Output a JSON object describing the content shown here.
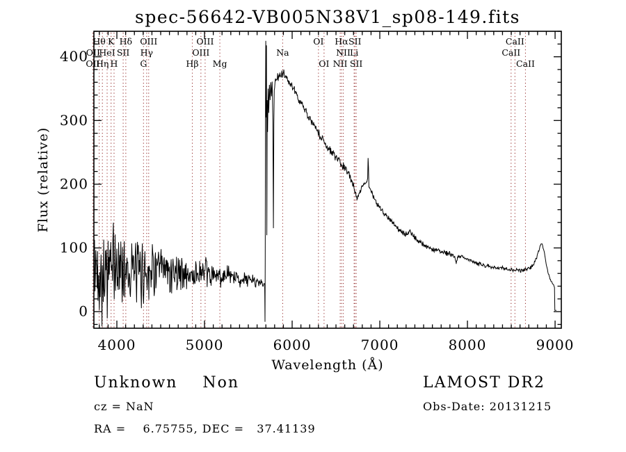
{
  "title": "spec-56642-VB005N38V1_sp08-149.fits",
  "annotations": {
    "class_label": "Unknown    Non",
    "cz": "cz = NaN",
    "radec": "RA =    6.75755, DEC =   37.41139",
    "survey": "LAMOST DR2",
    "obs_date": "Obs-Date: 20131215"
  },
  "chart_data": {
    "type": "line",
    "title": "spec-56642-VB005N38V1_sp08-149.fits",
    "xlabel": "Wavelength (Å)",
    "ylabel": "Flux (relative)",
    "xlim": [
      3738,
      9071
    ],
    "ylim": [
      -26,
      440
    ],
    "xticks": [
      4000,
      5000,
      6000,
      7000,
      8000,
      9000
    ],
    "x_minor_step": 100,
    "yticks": [
      0,
      100,
      200,
      300,
      400
    ],
    "y_minor_step": 20,
    "grid": false,
    "legend": "none",
    "trace_color": "#000000",
    "line_marker_color": "#993333",
    "spectral_lines": [
      {
        "label": "OII",
        "wavelength": 3726,
        "row": 3
      },
      {
        "label": "OII",
        "wavelength": 3729,
        "row": 2
      },
      {
        "label": "Hθ",
        "wavelength": 3798,
        "row": 1
      },
      {
        "label": "Hη",
        "wavelength": 3835,
        "row": 3
      },
      {
        "label": "HeI",
        "wavelength": 3889,
        "row": 2
      },
      {
        "label": "K",
        "wavelength": 3934,
        "row": 1
      },
      {
        "label": "H",
        "wavelength": 3968,
        "row": 3
      },
      {
        "label": "SII",
        "wavelength": 4072,
        "row": 2
      },
      {
        "label": "Hδ",
        "wavelength": 4102,
        "row": 1
      },
      {
        "label": "G",
        "wavelength": 4304,
        "row": 3
      },
      {
        "label": "Hγ",
        "wavelength": 4340,
        "row": 2
      },
      {
        "label": "OIII",
        "wavelength": 4363,
        "row": 1
      },
      {
        "label": "Hβ",
        "wavelength": 4861,
        "row": 3
      },
      {
        "label": "OIII",
        "wavelength": 4959,
        "row": 2
      },
      {
        "label": "OIII",
        "wavelength": 5007,
        "row": 1
      },
      {
        "label": "Mg",
        "wavelength": 5175,
        "row": 3
      },
      {
        "label": "Na",
        "wavelength": 5892,
        "row": 2
      },
      {
        "label": "OI",
        "wavelength": 6300,
        "row": 1
      },
      {
        "label": "OI",
        "wavelength": 6364,
        "row": 3
      },
      {
        "label": "NII",
        "wavelength": 6548,
        "row": 3
      },
      {
        "label": "Hα",
        "wavelength": 6563,
        "row": 1
      },
      {
        "label": "NII",
        "wavelength": 6583,
        "row": 2
      },
      {
        "label": "Li",
        "wavelength": 6707,
        "row": 2
      },
      {
        "label": "SII",
        "wavelength": 6716,
        "row": 1
      },
      {
        "label": "SII",
        "wavelength": 6731,
        "row": 3
      },
      {
        "label": "CaII",
        "wavelength": 8542,
        "row": 1
      },
      {
        "label": "CaII",
        "wavelength": 8498,
        "row": 2
      },
      {
        "label": "CaII",
        "wavelength": 8662,
        "row": 3
      }
    ],
    "sample_step": 5,
    "noise_seed": 42,
    "blue_keypoints": [
      [
        3740,
        60,
        80
      ],
      [
        3790,
        68,
        76
      ],
      [
        3840,
        58,
        72
      ],
      [
        3890,
        66,
        70
      ],
      [
        3940,
        70,
        66
      ],
      [
        3990,
        66,
        62
      ],
      [
        4040,
        72,
        60
      ],
      [
        4090,
        70,
        57
      ],
      [
        4140,
        68,
        55
      ],
      [
        4190,
        64,
        52
      ],
      [
        4240,
        62,
        50
      ],
      [
        4290,
        58,
        47
      ],
      [
        4340,
        64,
        45
      ],
      [
        4390,
        69,
        43
      ],
      [
        4440,
        66,
        40
      ],
      [
        4490,
        63,
        38
      ],
      [
        4540,
        64,
        35
      ],
      [
        4590,
        61,
        32
      ],
      [
        4640,
        63,
        30
      ],
      [
        4690,
        64,
        29
      ],
      [
        4740,
        61,
        28
      ],
      [
        4790,
        58,
        27
      ],
      [
        4840,
        57,
        26
      ],
      [
        4890,
        58,
        25
      ],
      [
        4940,
        60,
        24
      ],
      [
        4990,
        61,
        22
      ],
      [
        5040,
        58,
        21
      ],
      [
        5090,
        56,
        20
      ],
      [
        5140,
        55,
        19
      ],
      [
        5190,
        56,
        17
      ],
      [
        5240,
        56,
        16
      ],
      [
        5290,
        55,
        15
      ],
      [
        5340,
        53,
        14
      ],
      [
        5390,
        52,
        13
      ],
      [
        5440,
        51,
        12
      ],
      [
        5490,
        50,
        11
      ],
      [
        5540,
        49,
        10
      ],
      [
        5590,
        48,
        9
      ],
      [
        5640,
        46,
        8
      ],
      [
        5686,
        44,
        6
      ]
    ],
    "junction_points": [
      [
        5688,
        25
      ],
      [
        5690,
        -16
      ],
      [
        5693,
        80
      ],
      [
        5696,
        330
      ],
      [
        5699,
        425
      ],
      [
        5703,
        305
      ],
      [
        5707,
        418
      ],
      [
        5711,
        120
      ],
      [
        5715,
        332
      ],
      [
        5720,
        282
      ],
      [
        5726,
        350
      ],
      [
        5733,
        312
      ],
      [
        5740,
        356
      ],
      [
        5748,
        332
      ],
      [
        5756,
        360
      ],
      [
        5764,
        338
      ],
      [
        5772,
        361
      ],
      [
        5780,
        300
      ],
      [
        5786,
        131
      ],
      [
        5791,
        295
      ],
      [
        5796,
        348
      ]
    ],
    "red_keypoints": [
      [
        5800,
        356,
        6
      ],
      [
        5830,
        366,
        7
      ],
      [
        5860,
        371,
        7
      ],
      [
        5890,
        374,
        7
      ],
      [
        5920,
        370,
        7
      ],
      [
        5950,
        364,
        7
      ],
      [
        6000,
        352,
        7
      ],
      [
        6050,
        341,
        7
      ],
      [
        6100,
        328,
        7
      ],
      [
        6150,
        315,
        6
      ],
      [
        6200,
        303,
        6
      ],
      [
        6250,
        291,
        6
      ],
      [
        6300,
        281,
        6
      ],
      [
        6325,
        271,
        5
      ],
      [
        6350,
        273,
        5
      ],
      [
        6375,
        263,
        5
      ],
      [
        6400,
        258,
        5
      ],
      [
        6450,
        251,
        6
      ],
      [
        6500,
        241,
        6
      ],
      [
        6550,
        233,
        6
      ],
      [
        6600,
        225,
        6
      ],
      [
        6650,
        215,
        6
      ],
      [
        6690,
        203,
        5
      ],
      [
        6720,
        187,
        5
      ],
      [
        6740,
        177,
        4
      ],
      [
        6765,
        187,
        4
      ],
      [
        6795,
        195,
        4
      ],
      [
        6825,
        201,
        4
      ],
      [
        6852,
        205,
        3
      ],
      [
        6862,
        209,
        1
      ],
      [
        6866,
        241,
        0
      ],
      [
        6871,
        227,
        1
      ],
      [
        6876,
        197,
        2
      ],
      [
        6895,
        190,
        4
      ],
      [
        6925,
        181,
        4
      ],
      [
        6955,
        172,
        4
      ],
      [
        7000,
        163,
        4
      ],
      [
        7050,
        155,
        4
      ],
      [
        7100,
        148,
        4
      ],
      [
        7150,
        139,
        4
      ],
      [
        7200,
        131,
        4
      ],
      [
        7250,
        124,
        4
      ],
      [
        7300,
        121,
        4
      ],
      [
        7340,
        127,
        4
      ],
      [
        7385,
        118,
        4
      ],
      [
        7435,
        112,
        4
      ],
      [
        7485,
        107,
        4
      ],
      [
        7535,
        102,
        4
      ],
      [
        7585,
        99,
        4
      ],
      [
        7625,
        95,
        4
      ],
      [
        7665,
        97,
        4
      ],
      [
        7705,
        95,
        4
      ],
      [
        7755,
        92,
        4
      ],
      [
        7805,
        90,
        4
      ],
      [
        7855,
        86,
        3
      ],
      [
        7872,
        77,
        2
      ],
      [
        7888,
        86,
        3
      ],
      [
        7925,
        87,
        3
      ],
      [
        7965,
        84,
        3
      ],
      [
        8005,
        82,
        3
      ],
      [
        8055,
        79,
        3
      ],
      [
        8105,
        76,
        3
      ],
      [
        8155,
        74,
        3
      ],
      [
        8205,
        72,
        3
      ],
      [
        8255,
        71,
        3
      ],
      [
        8305,
        70,
        3
      ],
      [
        8355,
        69,
        3
      ],
      [
        8405,
        68,
        3
      ],
      [
        8455,
        67,
        3
      ],
      [
        8505,
        66,
        3
      ],
      [
        8555,
        65,
        3
      ],
      [
        8605,
        65,
        3
      ],
      [
        8655,
        66,
        3
      ],
      [
        8705,
        68,
        3
      ],
      [
        8745,
        72,
        3
      ],
      [
        8785,
        83,
        3
      ],
      [
        8815,
        95,
        3
      ],
      [
        8838,
        107,
        2
      ],
      [
        8858,
        104,
        2
      ],
      [
        8878,
        93,
        2
      ],
      [
        8898,
        77,
        2
      ],
      [
        8918,
        62,
        2
      ],
      [
        8942,
        52,
        2
      ],
      [
        8962,
        46,
        1
      ],
      [
        8982,
        42,
        1
      ],
      [
        8993,
        38,
        0
      ],
      [
        8997,
        2,
        0
      ],
      [
        9015,
        2,
        0
      ]
    ]
  }
}
